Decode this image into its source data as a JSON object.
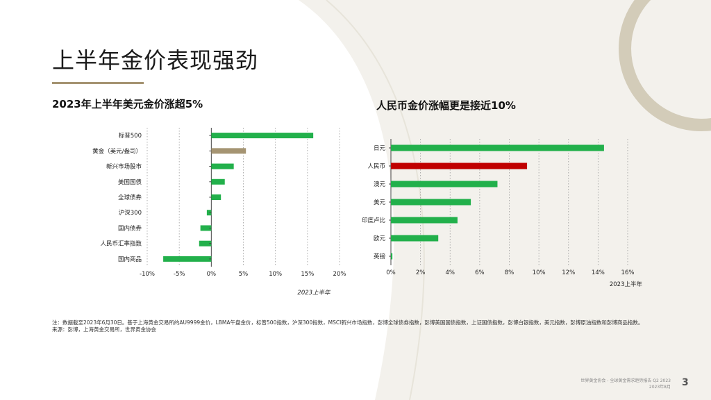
{
  "page": {
    "title": "上半年金价表现强劲",
    "page_number": "3",
    "note": "注：数据截至2023年6月30日。基于上海黄金交易所的AU9999金价，LBMA午盘金价，标普500指数，沪深300指数，MSCI新兴市场指数，彭博全球债券指数，彭博美国国债指数，上证国债指数，彭博白银指数，美元指数，彭博原油指数和彭博商品指数。",
    "source": "来源：彭博，上海黄金交易所，世界黄金协会",
    "footer_line1": "世界黄金协会 - 全球黄金需求趋势报告 Q2 2023",
    "footer_line2": "2023年8月"
  },
  "colors": {
    "green": "#22b04b",
    "gold": "#a59472",
    "red": "#c00000",
    "bg_shape": "#eeece5"
  },
  "left": {
    "subtitle": "2023年上半年美元金价涨超5%"
  },
  "right": {
    "subtitle": "人民币金价涨幅更是接近10%"
  },
  "chart_data": [
    {
      "type": "bar",
      "orientation": "horizontal",
      "title": "2023年上半年美元金价涨超5%",
      "categories": [
        "标普500",
        "黄金（美元/盎司）",
        "新兴市场股市",
        "美国国债",
        "全球债券",
        "沪深300",
        "国内债券",
        "人民币汇率指数",
        "国内商品"
      ],
      "values": [
        15.9,
        5.4,
        3.5,
        2.1,
        1.5,
        -0.7,
        -1.7,
        -1.9,
        -7.5
      ],
      "bar_colors": [
        "#22b04b",
        "#a59472",
        "#22b04b",
        "#22b04b",
        "#22b04b",
        "#22b04b",
        "#22b04b",
        "#22b04b",
        "#22b04b"
      ],
      "xlim": [
        -10,
        20
      ],
      "xticks": [
        "-10%",
        "-5%",
        "0%",
        "5%",
        "10%",
        "15%",
        "20%"
      ],
      "xlabel": "2023上半年",
      "grid": "vertical dotted"
    },
    {
      "type": "bar",
      "orientation": "horizontal",
      "title": "人民币金价涨幅更是接近10%",
      "categories": [
        "日元",
        "人民币",
        "澳元",
        "美元",
        "印度卢比",
        "欧元",
        "英镑"
      ],
      "values": [
        14.4,
        9.2,
        7.2,
        5.4,
        4.5,
        3.2,
        0.1
      ],
      "bar_colors": [
        "#22b04b",
        "#c00000",
        "#22b04b",
        "#22b04b",
        "#22b04b",
        "#22b04b",
        "#22b04b"
      ],
      "xlim": [
        0,
        16
      ],
      "xticks": [
        "0%",
        "2%",
        "4%",
        "6%",
        "8%",
        "10%",
        "12%",
        "14%",
        "16%"
      ],
      "xlabel": "2023上半年",
      "grid": "vertical dotted"
    }
  ]
}
